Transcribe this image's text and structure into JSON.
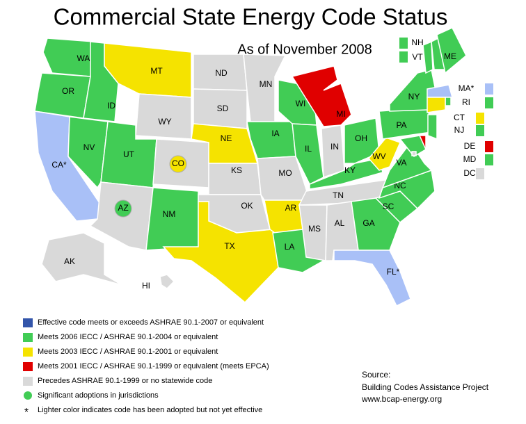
{
  "title": "Commercial State Energy Code Status",
  "subtitle": "As of November 2008",
  "states": [
    {
      "label": "WA",
      "color": "#41cc55"
    },
    {
      "label": "OR",
      "color": "#41cc55"
    },
    {
      "label": "CA*",
      "color": "#a9c0f7"
    },
    {
      "label": "NV",
      "color": "#41cc55"
    },
    {
      "label": "ID",
      "color": "#41cc55"
    },
    {
      "label": "MT",
      "color": "#f5e300"
    },
    {
      "label": "WY",
      "color": "#d9d9d9"
    },
    {
      "label": "UT",
      "color": "#41cc55"
    },
    {
      "label": "CO",
      "color": "#d9d9d9",
      "jurisdiction_color": "#f5e300"
    },
    {
      "label": "AZ",
      "color": "#d9d9d9",
      "jurisdiction_color": "#41cc55"
    },
    {
      "label": "NM",
      "color": "#41cc55"
    },
    {
      "label": "ND",
      "color": "#d9d9d9"
    },
    {
      "label": "SD",
      "color": "#d9d9d9"
    },
    {
      "label": "NE",
      "color": "#f5e300"
    },
    {
      "label": "KS",
      "color": "#d9d9d9"
    },
    {
      "label": "OK",
      "color": "#d9d9d9"
    },
    {
      "label": "TX",
      "color": "#f5e300"
    },
    {
      "label": "MN",
      "color": "#d9d9d9"
    },
    {
      "label": "IA",
      "color": "#41cc55"
    },
    {
      "label": "MO",
      "color": "#d9d9d9"
    },
    {
      "label": "AR",
      "color": "#f5e300"
    },
    {
      "label": "LA",
      "color": "#41cc55"
    },
    {
      "label": "WI",
      "color": "#41cc55"
    },
    {
      "label": "IL",
      "color": "#41cc55"
    },
    {
      "label": "MI",
      "color": "#e00000"
    },
    {
      "label": "IN",
      "color": "#d9d9d9"
    },
    {
      "label": "OH",
      "color": "#41cc55"
    },
    {
      "label": "KY",
      "color": "#41cc55"
    },
    {
      "label": "TN",
      "color": "#d9d9d9"
    },
    {
      "label": "MS",
      "color": "#d9d9d9"
    },
    {
      "label": "AL",
      "color": "#d9d9d9"
    },
    {
      "label": "GA",
      "color": "#41cc55"
    },
    {
      "label": "FL*",
      "color": "#a9c0f7"
    },
    {
      "label": "SC",
      "color": "#41cc55"
    },
    {
      "label": "NC",
      "color": "#41cc55"
    },
    {
      "label": "VA",
      "color": "#41cc55"
    },
    {
      "label": "WV",
      "color": "#f5e300"
    },
    {
      "label": "PA",
      "color": "#41cc55"
    },
    {
      "label": "NY",
      "color": "#41cc55"
    },
    {
      "label": "VT",
      "color": "#41cc55"
    },
    {
      "label": "NH",
      "color": "#41cc55"
    },
    {
      "label": "ME",
      "color": "#41cc55"
    },
    {
      "label": "MA*",
      "color": "#a9c0f7"
    },
    {
      "label": "RI",
      "color": "#41cc55"
    },
    {
      "label": "CT",
      "color": "#f5e300"
    },
    {
      "label": "NJ",
      "color": "#41cc55"
    },
    {
      "label": "DE",
      "color": "#e00000"
    },
    {
      "label": "MD",
      "color": "#41cc55"
    },
    {
      "label": "DC",
      "color": "#d9d9d9"
    },
    {
      "label": "AK",
      "color": "#d9d9d9"
    },
    {
      "label": "HI",
      "color": "#d9d9d9"
    }
  ],
  "legend": [
    {
      "label": "Effective code meets or exceeds ASHRAE 90.1-2007 or equivalent",
      "color": "#3355aa"
    },
    {
      "label": "Meets 2006 IECC / ASHRAE 90.1-2004 or equivalent",
      "color": "#41cc55"
    },
    {
      "label": "Meets 2003 IECC / ASHRAE 90.1-2001 or equivalent",
      "color": "#f5e300"
    },
    {
      "label": "Meets 2001 IECC / ASHRAE 90.1-1999 or equivalent (meets EPCA)",
      "color": "#e00000"
    },
    {
      "label": "Precedes ASHRAE 90.1-1999 or no statewide code",
      "color": "#d9d9d9"
    },
    {
      "label": "Significant adoptions in jurisdictions",
      "color": "#41cc55",
      "shape": "circle"
    },
    {
      "label": "Lighter color indicates code has been adopted but not yet effective",
      "symbol": "*"
    }
  ],
  "source": [
    "Source:",
    "Building Codes Assistance Project",
    "www.bcap-energy.org"
  ]
}
